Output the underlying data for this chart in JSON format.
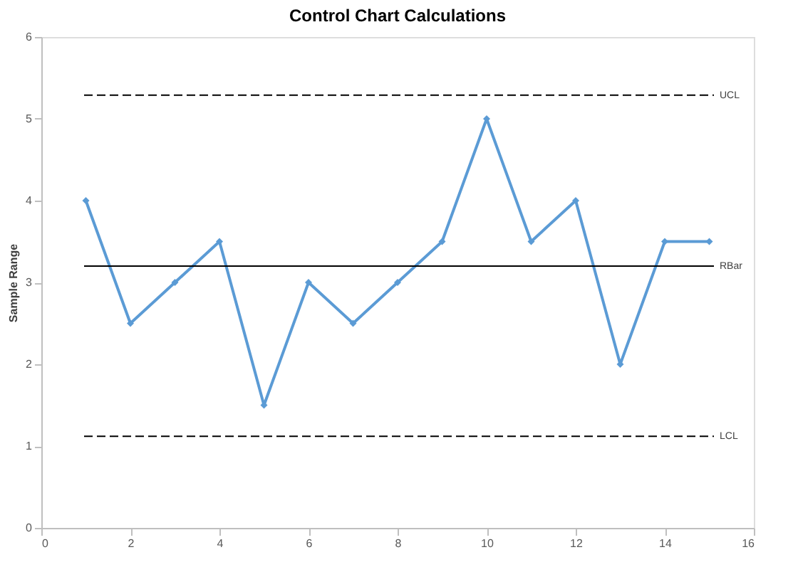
{
  "chart_data": {
    "type": "line",
    "title": "Control Chart Calculations",
    "ylabel": "Sample Range",
    "x": [
      1,
      2,
      3,
      4,
      5,
      6,
      7,
      8,
      9,
      10,
      11,
      12,
      13,
      14,
      15
    ],
    "series": [
      {
        "color": "#5b9bd5",
        "values": [
          4,
          2.5,
          3,
          3.5,
          1.5,
          3,
          2.5,
          3,
          3.5,
          5,
          3.5,
          4,
          2,
          3.5,
          3.5
        ]
      }
    ],
    "xlim": [
      0,
      16
    ],
    "xticks": [
      0,
      2,
      4,
      6,
      8,
      10,
      12,
      14,
      16
    ],
    "ylim": [
      0,
      6
    ],
    "yticks": [
      0,
      1,
      2,
      3,
      4,
      5,
      6
    ],
    "ref_lines": [
      {
        "axis": "y",
        "value": 5.29,
        "label": "UCL",
        "line_style": "dashed"
      },
      {
        "axis": "y",
        "value": 3.2,
        "label": "RBar",
        "line_style": "solid"
      },
      {
        "axis": "y",
        "value": 1.12,
        "label": "LCL",
        "line_style": "dashed"
      }
    ],
    "marker": "diamond",
    "grid": false
  }
}
